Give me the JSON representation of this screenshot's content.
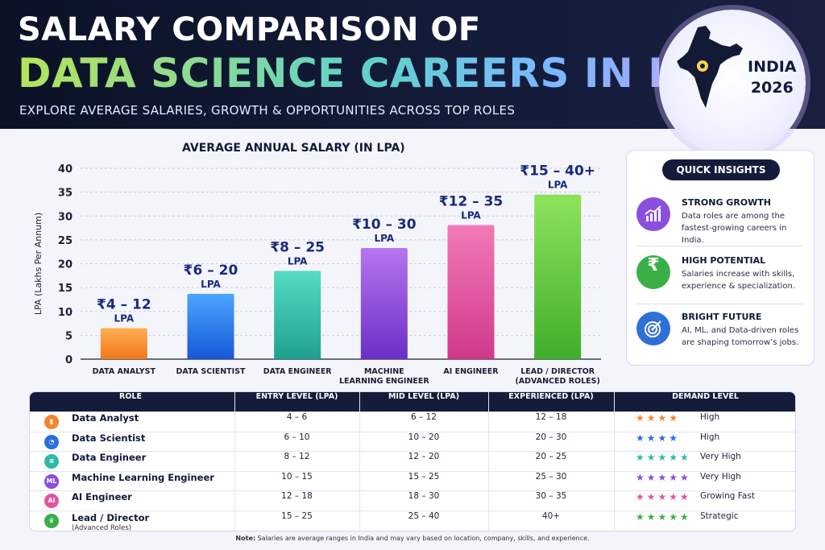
{
  "header": {
    "title_line1": "SALARY COMPARISON OF",
    "title_line2": "DATA SCIENCE CAREERS IN INDIA",
    "subtitle": "EXPLORE AVERAGE SALARIES, GROWTH & OPPORTUNITIES ACROSS TOP ROLES",
    "badge_line1": "INDIA",
    "badge_line2": "2026"
  },
  "chart_data": {
    "type": "bar",
    "title": "AVERAGE ANNUAL SALARY (IN LPA)",
    "ylabel": "LPA (Lakhs Per Annum)",
    "xlabel": "",
    "ylim": [
      0,
      40
    ],
    "yticks": [
      0,
      5,
      10,
      15,
      20,
      25,
      30,
      35,
      40
    ],
    "grid": true,
    "categories": [
      "DATA ANALYST",
      "DATA SCIENTIST",
      "DATA ENGINEER",
      "MACHINE LEARNING ENGINEER",
      "AI ENGINEER",
      "LEAD / DIRECTOR (ADVANCED ROLES)"
    ],
    "category_lines": [
      [
        "DATA ANALYST"
      ],
      [
        "DATA SCIENTIST"
      ],
      [
        "DATA ENGINEER"
      ],
      [
        "MACHINE",
        "LEARNING ENGINEER"
      ],
      [
        "AI ENGINEER"
      ],
      [
        "LEAD / DIRECTOR",
        "(ADVANCED ROLES)"
      ]
    ],
    "values": [
      6.5,
      13.7,
      18.5,
      23.3,
      28.1,
      34.5
    ],
    "range_labels": [
      "₹4 – 12",
      "₹6 – 20",
      "₹8 – 25",
      "₹10 – 30",
      "₹12 – 35",
      "₹15 – 40+"
    ],
    "unit_label": "LPA",
    "colors": [
      [
        "#ffae52",
        "#f0781a"
      ],
      [
        "#4aa6ff",
        "#1857d8"
      ],
      [
        "#55dcc3",
        "#1fa08e"
      ],
      [
        "#b775ee",
        "#6a2fc6"
      ],
      [
        "#f27ab8",
        "#d1398a"
      ],
      [
        "#8ee35c",
        "#3fae2b"
      ]
    ]
  },
  "insights": {
    "title": "QUICK INSIGHTS",
    "items": [
      {
        "heading": "STRONG GROWTH",
        "text": "Data roles are among the fastest-growing careers in India.",
        "icon": "growth-chart-icon",
        "color": "#8a4fdc"
      },
      {
        "heading": "HIGH POTENTIAL",
        "text": "Salaries increase with skills, experience & specialization.",
        "icon": "rupee-icon",
        "symbol": "₹",
        "color": "#3aaf46"
      },
      {
        "heading": "BRIGHT FUTURE",
        "text": "AI, ML, and Data-driven roles are shaping tomorrow’s jobs.",
        "icon": "target-icon",
        "color": "#2f6fd8"
      }
    ]
  },
  "table": {
    "headers": [
      "ROLE",
      "ENTRY LEVEL (LPA)",
      "MID LEVEL (LPA)",
      "EXPERIENCED (LPA)",
      "DEMAND LEVEL"
    ],
    "rows": [
      {
        "role": "Data Analyst",
        "sub": "",
        "entry": "4 – 6",
        "mid": "6 – 12",
        "exp": "12 – 18",
        "stars": 4,
        "star_color": "#f5842a",
        "demand": "High",
        "icon": "bar-chart-icon",
        "icon_text": "▮",
        "icon_color": "#f5842a"
      },
      {
        "role": "Data Scientist",
        "sub": "",
        "entry": "6 – 10",
        "mid": "10 – 20",
        "exp": "20 – 30",
        "stars": 4,
        "star_color": "#2a6ee0",
        "demand": "High",
        "icon": "pie-chart-icon",
        "icon_text": "◔",
        "icon_color": "#2a6ee0"
      },
      {
        "role": "Data Engineer",
        "sub": "",
        "entry": "8 – 12",
        "mid": "12 – 20",
        "exp": "20 – 25",
        "stars": 5,
        "star_color": "#2fb8a6",
        "demand": "Very High",
        "icon": "database-icon",
        "icon_text": "≡",
        "icon_color": "#2fb8a6"
      },
      {
        "role": "Machine Learning Engineer",
        "sub": "",
        "entry": "10 – 15",
        "mid": "15 – 25",
        "exp": "25 – 30",
        "stars": 5,
        "star_color": "#8a4fdc",
        "demand": "Very High",
        "icon": "ml-icon",
        "icon_text": "ML",
        "icon_color": "#8a4fdc"
      },
      {
        "role": "AI Engineer",
        "sub": "",
        "entry": "12 – 18",
        "mid": "18 – 30",
        "exp": "30 – 35",
        "stars": 5,
        "star_color": "#e2559e",
        "demand": "Growing Fast",
        "icon": "ai-icon",
        "icon_text": "AI",
        "icon_color": "#e2559e"
      },
      {
        "role": "Lead / Director",
        "sub": "(Advanced Roles)",
        "entry": "15 – 25",
        "mid": "25 – 40",
        "exp": "40+",
        "stars": 5,
        "star_color": "#3aaf46",
        "demand": "Strategic",
        "icon": "crown-icon",
        "icon_text": "♛",
        "icon_color": "#3aaf46"
      }
    ]
  },
  "note": {
    "label": "Note:",
    "text": " Salaries are average ranges in India and may vary based on location, company, skills, and experience."
  }
}
